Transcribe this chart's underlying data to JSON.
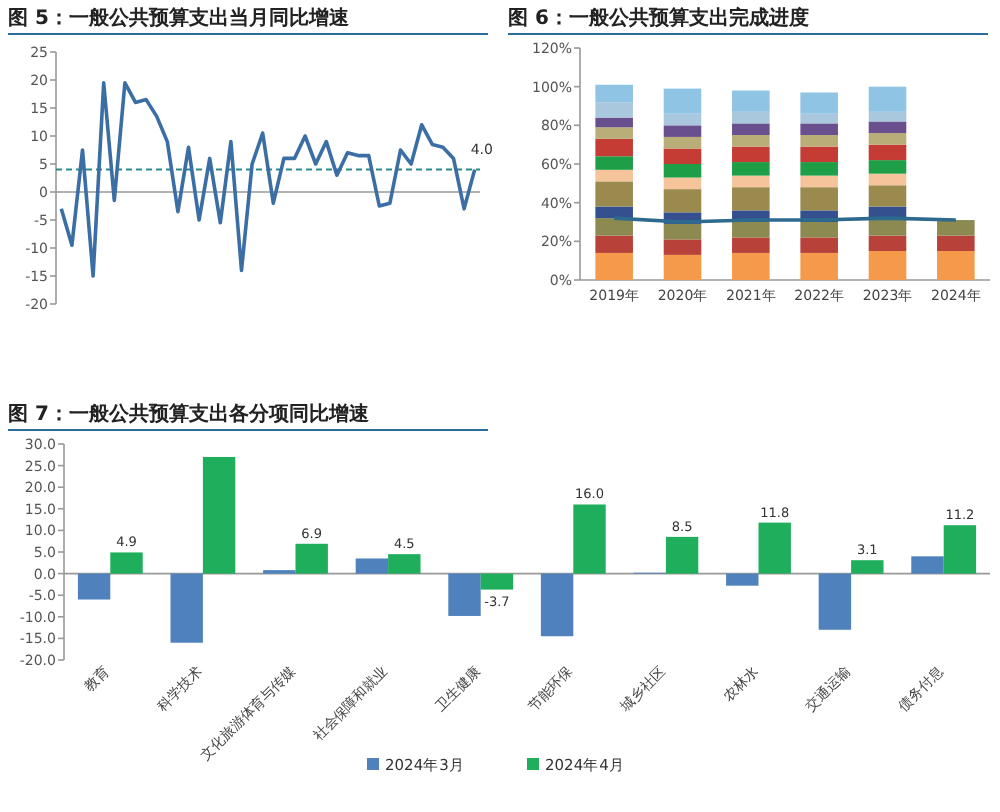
{
  "chart_data": [
    {
      "type": "line",
      "title": "图 5：一般公共预算支出当月同比增速",
      "categories": [
        null,
        null,
        null,
        null,
        null,
        null,
        null,
        null,
        null,
        null,
        null,
        null,
        null,
        null,
        null,
        null,
        null,
        null,
        null,
        null,
        null,
        null,
        null,
        null,
        null,
        null,
        null,
        null,
        null,
        null,
        null,
        null,
        null,
        null,
        null,
        null,
        null,
        null,
        null,
        null
      ],
      "series": [
        {
          "color": "#3a6ea5",
          "values": [
            -3,
            -9.5,
            7.5,
            -15,
            19.5,
            -1.5,
            19.5,
            16,
            16.5,
            13.5,
            9,
            -3.5,
            8,
            -5,
            6,
            -5.5,
            9,
            -14,
            5,
            10.5,
            -2,
            6,
            6,
            10,
            5,
            9,
            3,
            7,
            6.5,
            6.5,
            -2.5,
            -2,
            7.5,
            5,
            12,
            8.5,
            8,
            6,
            -3,
            4
          ]
        }
      ],
      "ylim": [
        -20,
        25
      ],
      "yticks": [
        -20,
        -15,
        -10,
        -5,
        0,
        5,
        10,
        15,
        20,
        25
      ],
      "ref_lines": [
        {
          "axis": "y",
          "value": 4,
          "color": "#2a8a8a",
          "line_style": "dashed"
        }
      ],
      "annotations": [
        {
          "text": "4.0",
          "y": 4
        }
      ],
      "legend": false
    },
    {
      "type": "bar",
      "stacked": true,
      "title": "图 6：一般公共预算支出完成进度",
      "categories": [
        "2019年",
        "2020年",
        "2021年",
        "2022年",
        "2023年",
        "2024年"
      ],
      "series": [
        {
          "color": "#f59a4a",
          "values": [
            14,
            13,
            14,
            14,
            15,
            15
          ]
        },
        {
          "color": "#b8413a",
          "values": [
            9,
            8,
            8,
            8,
            8,
            8
          ]
        },
        {
          "color": "#8c8a50",
          "values": [
            9,
            8,
            8,
            8,
            9,
            8
          ]
        },
        {
          "color": "#34508f",
          "values": [
            6,
            6,
            6,
            6,
            6,
            null
          ]
        },
        {
          "color": "#9a8a4e",
          "values": [
            13,
            12,
            12,
            12,
            11,
            null
          ]
        },
        {
          "color": "#f6c49a",
          "values": [
            6,
            6,
            6,
            6,
            6,
            null
          ]
        },
        {
          "color": "#1f9e48",
          "values": [
            7,
            7,
            7,
            7,
            7,
            null
          ]
        },
        {
          "color": "#c43c33",
          "values": [
            9,
            8,
            8,
            8,
            8,
            null
          ]
        },
        {
          "color": "#b9ad78",
          "values": [
            6,
            6,
            6,
            6,
            6,
            null
          ]
        },
        {
          "color": "#6a4f8f",
          "values": [
            5,
            6,
            6,
            6,
            6,
            null
          ]
        },
        {
          "color": "#a9c7dd",
          "values": [
            8,
            6,
            6,
            5,
            5,
            null
          ]
        },
        {
          "color": "#8fc4e4",
          "values": [
            9,
            13,
            11,
            11,
            13,
            null
          ]
        },
        {
          "type": "line",
          "color": "#2e6a8e",
          "values": [
            32,
            30,
            31,
            31,
            32,
            31
          ]
        }
      ],
      "ylim": [
        0,
        120
      ],
      "yticks": [
        {
          "value": 0,
          "label": "0%"
        },
        {
          "value": 20,
          "label": "20%"
        },
        {
          "value": 40,
          "label": "40%"
        },
        {
          "value": 60,
          "label": "60%"
        },
        {
          "value": 80,
          "label": "80%"
        },
        {
          "value": 100,
          "label": "100%"
        },
        {
          "value": 120,
          "label": "120%"
        }
      ],
      "legend": false
    },
    {
      "type": "bar",
      "title": "图 7：一般公共预算支出各分项同比增速",
      "categories": [
        "教育",
        "科学技术",
        "文化旅游体育与传媒",
        "社会保障和就业",
        "卫生健康",
        "节能环保",
        "城乡社区",
        "农林水",
        "交通运输",
        "债务付息"
      ],
      "series": [
        {
          "name": "2024年3月",
          "color": "#4f81bd",
          "values": [
            -6,
            -16,
            0.8,
            3.5,
            -9.8,
            -14.5,
            0.2,
            -2.8,
            -13,
            4
          ]
        },
        {
          "name": "2024年4月",
          "color": "#1fae5c",
          "values": [
            4.9,
            27,
            6.9,
            4.5,
            -3.7,
            16,
            8.5,
            11.8,
            3.1,
            11.2
          ],
          "value_labels": [
            "4.9",
            null,
            "6.9",
            "4.5",
            "-3.7",
            "16.0",
            "8.5",
            "11.8",
            "3.1",
            "11.2"
          ]
        }
      ],
      "ylim": [
        -20,
        30
      ],
      "yticks": [
        {
          "value": -20,
          "label": "-20.0"
        },
        {
          "value": -15,
          "label": "-15.0"
        },
        {
          "value": -10,
          "label": "-10.0"
        },
        {
          "value": -5,
          "label": "-5.0"
        },
        {
          "value": 0,
          "label": "0.0"
        },
        {
          "value": 5,
          "label": "5.0"
        },
        {
          "value": 10,
          "label": "10.0"
        },
        {
          "value": 15,
          "label": "15.0"
        },
        {
          "value": 20,
          "label": "20.0"
        },
        {
          "value": 25,
          "label": "25.0"
        },
        {
          "value": 30,
          "label": "30.0"
        }
      ],
      "legend": "bottom"
    }
  ]
}
